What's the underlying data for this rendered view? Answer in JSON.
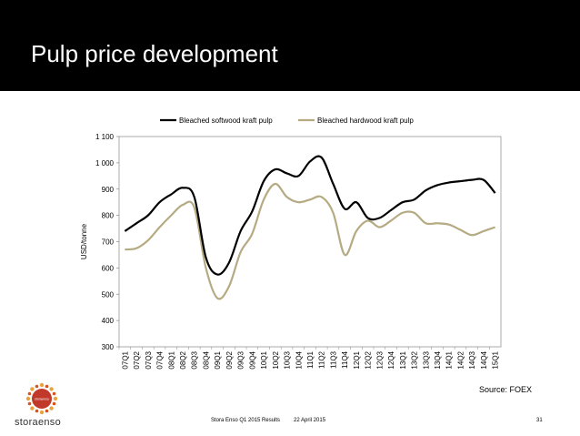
{
  "slide": {
    "title": "Pulp price development",
    "source": "Source:  FOEX",
    "footer_company": "Stora Enso Q1 2015 Results",
    "footer_date": "22 April 2015",
    "page_number": "31",
    "brand": "storaenso",
    "logo_text": "storaenso"
  },
  "chart_data": {
    "type": "line",
    "title": "",
    "xlabel": "",
    "ylabel": "USD/tonne",
    "ylim": [
      300,
      1100
    ],
    "yticks": [
      300,
      400,
      500,
      600,
      700,
      800,
      900,
      1000,
      1100
    ],
    "ytick_labels": [
      "300",
      "400",
      "500",
      "600",
      "700",
      "800",
      "900",
      "1 000",
      "1 100"
    ],
    "legend_position": "top",
    "categories": [
      "07Q1",
      "07Q2",
      "07Q3",
      "07Q4",
      "08Q1",
      "08Q2",
      "08Q3",
      "08Q4",
      "09Q1",
      "09Q2",
      "09Q3",
      "09Q4",
      "10Q1",
      "10Q2",
      "10Q3",
      "10Q4",
      "11Q1",
      "11Q2",
      "11Q3",
      "11Q4",
      "12Q1",
      "12Q2",
      "12Q3",
      "12Q4",
      "13Q1",
      "13Q2",
      "13Q3",
      "13Q4",
      "14Q1",
      "14Q2",
      "14Q3",
      "14Q4",
      "15Q1"
    ],
    "series": [
      {
        "name": "Bleached softwood kraft pulp",
        "color": "#000000",
        "values": [
          740,
          770,
          800,
          850,
          880,
          905,
          870,
          640,
          575,
          620,
          740,
          815,
          930,
          975,
          960,
          950,
          1005,
          1020,
          920,
          825,
          850,
          790,
          790,
          820,
          850,
          860,
          895,
          915,
          925,
          930,
          935,
          935,
          885
        ]
      },
      {
        "name": "Bleached hardwood kraft pulp",
        "color": "#b5aa82",
        "values": [
          670,
          675,
          705,
          755,
          800,
          840,
          830,
          600,
          485,
          530,
          660,
          730,
          860,
          920,
          870,
          850,
          860,
          870,
          810,
          650,
          740,
          780,
          755,
          780,
          810,
          810,
          770,
          770,
          765,
          745,
          725,
          740,
          755
        ]
      }
    ]
  }
}
